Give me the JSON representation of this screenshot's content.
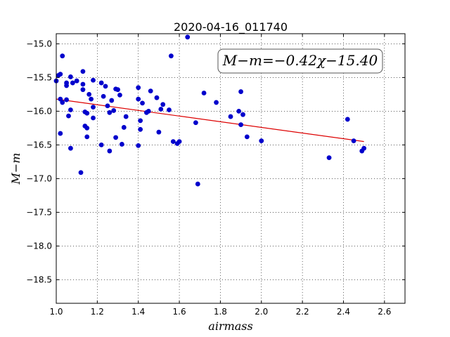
{
  "chart_data": {
    "type": "scatter",
    "title": "2020-04-16_011740",
    "xlabel": "airmass",
    "ylabel": "M−m",
    "xlim": [
      1.0,
      2.7
    ],
    "ylim": [
      -18.85,
      -14.85
    ],
    "y_inverted": true,
    "grid": true,
    "grid_style": "dotted",
    "xticks": [
      "1.0",
      "1.2",
      "1.4",
      "1.6",
      "1.8",
      "2.0",
      "2.2",
      "2.4",
      "2.6"
    ],
    "xtick_values": [
      1.0,
      1.2,
      1.4,
      1.6,
      1.8,
      2.0,
      2.2,
      2.4,
      2.6
    ],
    "yticks": [
      "−15.0",
      "−15.5",
      "−16.0",
      "−16.5",
      "−17.0",
      "−17.5",
      "−18.0",
      "−18.5"
    ],
    "ytick_values": [
      -15.0,
      -15.5,
      -16.0,
      -16.5,
      -17.0,
      -17.5,
      -18.0,
      -18.5
    ],
    "annotation": "M−m=−0.42χ−15.40",
    "annotation_position": "top-right",
    "point_color": "#0000cc",
    "fit_color": "#dd0000",
    "fit": {
      "slope": -0.42,
      "intercept": -15.4,
      "x_range": [
        1.0,
        2.5
      ]
    },
    "points": [
      {
        "x": 1.0,
        "y": -15.55
      },
      {
        "x": 1.01,
        "y": -15.47
      },
      {
        "x": 1.02,
        "y": -15.45
      },
      {
        "x": 1.03,
        "y": -15.18
      },
      {
        "x": 1.02,
        "y": -15.82
      },
      {
        "x": 1.03,
        "y": -15.87
      },
      {
        "x": 1.05,
        "y": -15.83
      },
      {
        "x": 1.02,
        "y": -16.33
      },
      {
        "x": 1.05,
        "y": -15.58
      },
      {
        "x": 1.05,
        "y": -15.62
      },
      {
        "x": 1.06,
        "y": -16.07
      },
      {
        "x": 1.07,
        "y": -15.98
      },
      {
        "x": 1.07,
        "y": -15.49
      },
      {
        "x": 1.08,
        "y": -15.58
      },
      {
        "x": 1.07,
        "y": -16.55
      },
      {
        "x": 1.1,
        "y": -15.55
      },
      {
        "x": 1.12,
        "y": -16.91
      },
      {
        "x": 1.13,
        "y": -15.6
      },
      {
        "x": 1.13,
        "y": -15.68
      },
      {
        "x": 1.13,
        "y": -15.41
      },
      {
        "x": 1.14,
        "y": -16.01
      },
      {
        "x": 1.15,
        "y": -16.03
      },
      {
        "x": 1.14,
        "y": -16.22
      },
      {
        "x": 1.15,
        "y": -16.25
      },
      {
        "x": 1.15,
        "y": -16.38
      },
      {
        "x": 1.16,
        "y": -15.75
      },
      {
        "x": 1.17,
        "y": -15.82
      },
      {
        "x": 1.18,
        "y": -15.54
      },
      {
        "x": 1.18,
        "y": -16.1
      },
      {
        "x": 1.18,
        "y": -15.94
      },
      {
        "x": 1.22,
        "y": -15.58
      },
      {
        "x": 1.22,
        "y": -16.5
      },
      {
        "x": 1.23,
        "y": -15.78
      },
      {
        "x": 1.24,
        "y": -15.63
      },
      {
        "x": 1.25,
        "y": -15.92
      },
      {
        "x": 1.26,
        "y": -16.02
      },
      {
        "x": 1.26,
        "y": -16.59
      },
      {
        "x": 1.27,
        "y": -15.84
      },
      {
        "x": 1.28,
        "y": -15.99
      },
      {
        "x": 1.29,
        "y": -15.67
      },
      {
        "x": 1.29,
        "y": -16.39
      },
      {
        "x": 1.3,
        "y": -15.68
      },
      {
        "x": 1.31,
        "y": -15.76
      },
      {
        "x": 1.32,
        "y": -16.49
      },
      {
        "x": 1.33,
        "y": -16.24
      },
      {
        "x": 1.34,
        "y": -16.08
      },
      {
        "x": 1.4,
        "y": -15.65
      },
      {
        "x": 1.4,
        "y": -15.82
      },
      {
        "x": 1.4,
        "y": -16.51
      },
      {
        "x": 1.41,
        "y": -16.14
      },
      {
        "x": 1.41,
        "y": -16.27
      },
      {
        "x": 1.42,
        "y": -15.88
      },
      {
        "x": 1.44,
        "y": -16.02
      },
      {
        "x": 1.45,
        "y": -16.0
      },
      {
        "x": 1.46,
        "y": -15.7
      },
      {
        "x": 1.49,
        "y": -15.8
      },
      {
        "x": 1.5,
        "y": -16.31
      },
      {
        "x": 1.51,
        "y": -15.97
      },
      {
        "x": 1.52,
        "y": -15.9
      },
      {
        "x": 1.55,
        "y": -15.98
      },
      {
        "x": 1.56,
        "y": -15.18
      },
      {
        "x": 1.57,
        "y": -16.45
      },
      {
        "x": 1.59,
        "y": -16.48
      },
      {
        "x": 1.6,
        "y": -16.45
      },
      {
        "x": 1.64,
        "y": -14.9
      },
      {
        "x": 1.68,
        "y": -16.17
      },
      {
        "x": 1.69,
        "y": -17.08
      },
      {
        "x": 1.72,
        "y": -15.73
      },
      {
        "x": 1.78,
        "y": -15.87
      },
      {
        "x": 1.85,
        "y": -16.08
      },
      {
        "x": 1.89,
        "y": -16.0
      },
      {
        "x": 1.9,
        "y": -16.2
      },
      {
        "x": 1.9,
        "y": -15.71
      },
      {
        "x": 1.91,
        "y": -16.05
      },
      {
        "x": 1.93,
        "y": -16.38
      },
      {
        "x": 2.0,
        "y": -16.44
      },
      {
        "x": 2.33,
        "y": -16.69
      },
      {
        "x": 2.42,
        "y": -16.12
      },
      {
        "x": 2.45,
        "y": -16.44
      },
      {
        "x": 2.49,
        "y": -16.59
      },
      {
        "x": 2.5,
        "y": -16.55
      }
    ]
  }
}
